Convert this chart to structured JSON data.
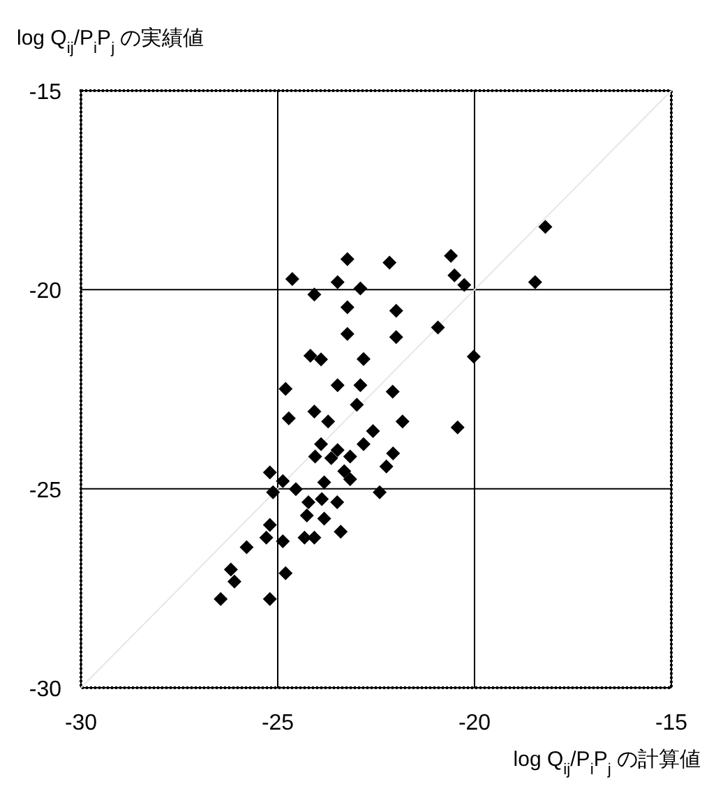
{
  "chart_data": {
    "type": "scatter",
    "xlabel": "log Q$_{ij}$/P$_{i}$P$_{j}$ の計算値",
    "ylabel": "log Q$_{ij}$/P$_{i}$P$_{j}$ の実績値",
    "xlim": [
      -30,
      -15
    ],
    "ylim": [
      -30,
      -15
    ],
    "xticks": [
      -30,
      -25,
      -20,
      -15
    ],
    "yticks": [
      -30,
      -25,
      -20,
      -15
    ],
    "grid": true,
    "series": [
      {
        "type": "line",
        "marker": "none",
        "color": "#e6e6e6",
        "x": [
          -30,
          -15
        ],
        "values": [
          -30,
          -15
        ]
      },
      {
        "marker": "diamond",
        "color": "#000000",
        "x": [
          -23.23,
          -22.16,
          -20.6,
          -24.63,
          -23.48,
          -24.07,
          -22.9,
          -20.51,
          -20.26,
          -23.23,
          -21.99,
          -23.23,
          -21.99,
          -20.93,
          -20.02,
          -23.9,
          -24.17,
          -22.82,
          -24.8,
          -23.48,
          -22.9,
          -22.08,
          -22.99,
          -24.72,
          -24.07,
          -23.72,
          -21.83,
          -20.43,
          -22.58,
          -22.82,
          -22.07,
          -22.24,
          -23.48,
          -23.16,
          -24.05,
          -25.2,
          -24.87,
          -23.82,
          -23.16,
          -23.9,
          -23.64,
          -23.31,
          -25.12,
          -24.54,
          -24.22,
          -23.88,
          -23.49,
          -22.41,
          -23.82,
          -23.4,
          -24.07,
          -24.32,
          -24.26,
          -25.2,
          -25.29,
          -24.87,
          -25.79,
          -26.19,
          -26.1,
          -24.8,
          -26.45,
          -25.2,
          -18.2,
          -18.46
        ],
        "values": [
          -19.23,
          -19.32,
          -19.15,
          -19.73,
          -19.81,
          -20.12,
          -19.97,
          -19.64,
          -19.88,
          -20.44,
          -20.53,
          -21.11,
          -21.19,
          -20.95,
          -21.68,
          -21.75,
          -21.66,
          -21.74,
          -22.49,
          -22.4,
          -22.4,
          -22.56,
          -22.89,
          -23.23,
          -23.06,
          -23.31,
          -23.31,
          -23.46,
          -23.55,
          -23.88,
          -24.11,
          -24.44,
          -24.03,
          -24.19,
          -24.19,
          -24.59,
          -24.81,
          -24.84,
          -24.76,
          -23.88,
          -24.23,
          -24.56,
          -25.09,
          -25.01,
          -25.34,
          -25.26,
          -25.34,
          -25.09,
          -25.75,
          -26.08,
          -26.23,
          -26.23,
          -25.67,
          -25.91,
          -26.23,
          -26.32,
          -26.47,
          -27.03,
          -27.33,
          -27.12,
          -27.77,
          -27.77,
          -18.42,
          -19.81
        ]
      }
    ]
  }
}
